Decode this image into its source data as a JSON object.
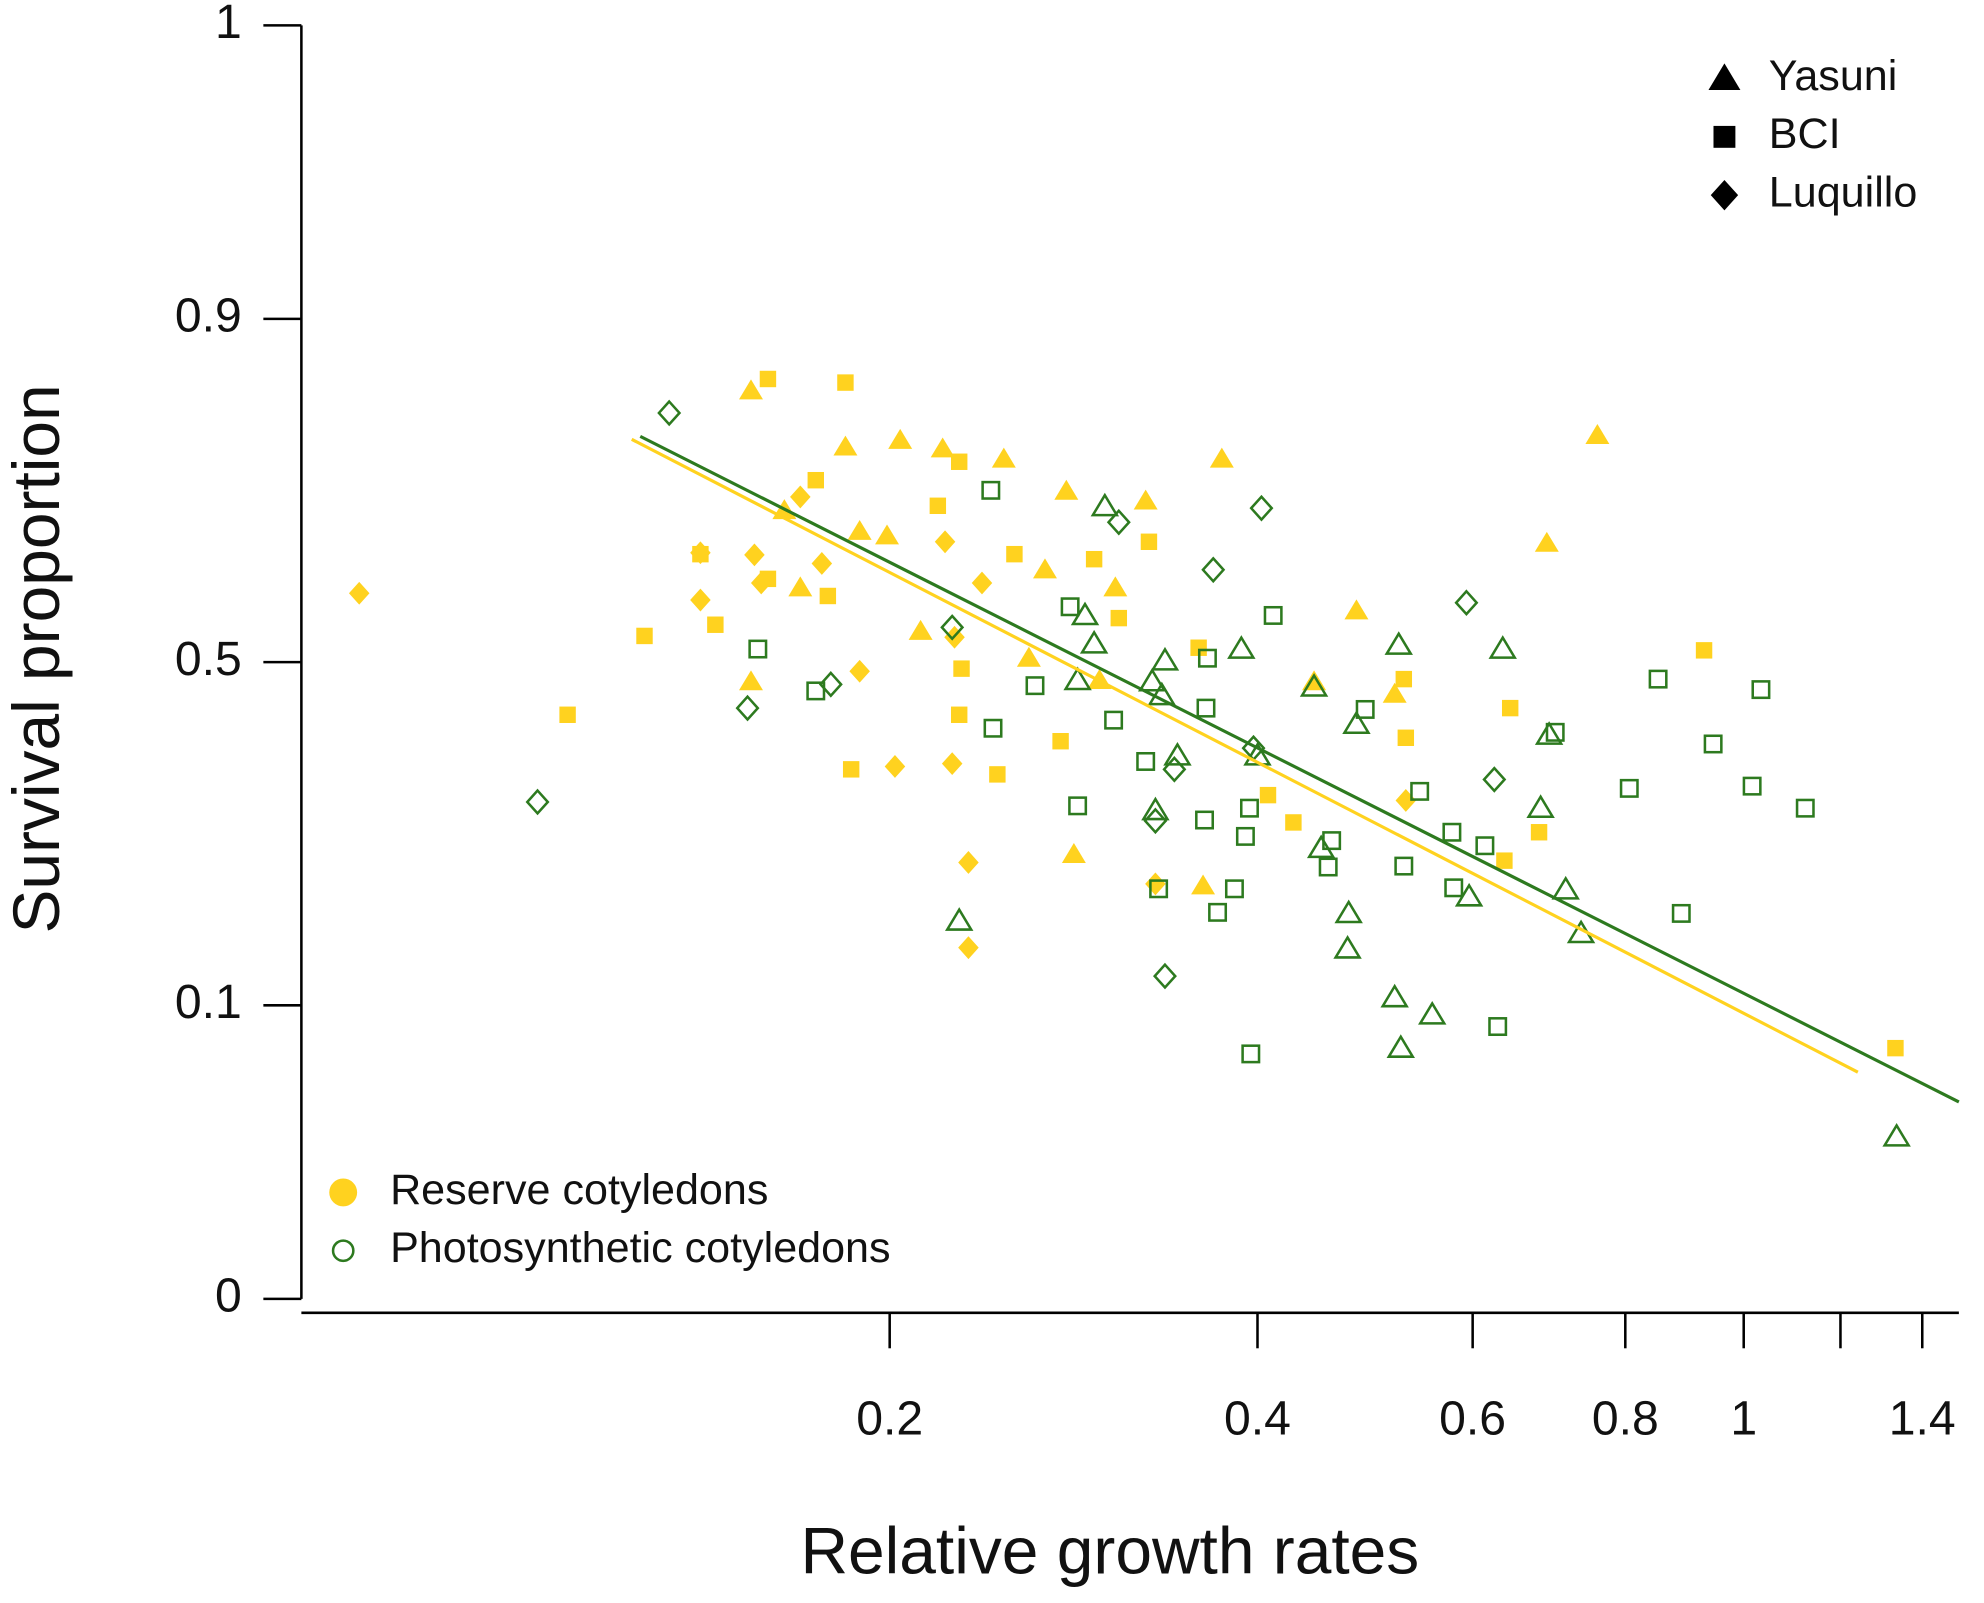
{
  "chart_data": {
    "type": "scatter",
    "x_label": "Relative growth rates",
    "y_label": "Survival proportion",
    "xscale": "log",
    "yscale": "logit",
    "xlim": [
      0.066,
      1.5
    ],
    "ylim": [
      0,
      1
    ],
    "xticks": [
      0.2,
      0.4,
      0.6,
      0.8,
      1,
      {
        "value": 1.2,
        "label": null
      },
      1.4
    ],
    "yticks": [
      0,
      0.1,
      0.5,
      0.9,
      1
    ],
    "legend": "top-right",
    "group_legend": "bottom-left",
    "sites": [
      {
        "name": "Yasuni",
        "marker": "triangle"
      },
      {
        "name": "BCI",
        "marker": "square"
      },
      {
        "name": "Luquillo",
        "marker": "diamond"
      }
    ],
    "series": [
      {
        "name": "Reserve cotyledons",
        "color": "#FFD21F",
        "filled": true,
        "fit": {
          "x": [
            0.123,
            1.24
          ],
          "y": [
            0.8,
            0.063
          ]
        },
        "by_site": [
          {
            "x": [
              0.154,
              0.204,
              0.221,
              0.184,
              0.248,
              0.374,
              0.759,
              0.279,
              0.324,
              0.164,
              0.189,
              0.199,
              0.69,
              0.306,
              0.169,
              0.268,
              0.212,
              0.297,
              0.482,
              0.518,
              0.445,
              0.154,
              0.283,
              0.26,
              0.361
            ],
            "y": [
              0.846,
              0.799,
              0.79,
              0.792,
              0.779,
              0.779,
              0.804,
              0.742,
              0.73,
              0.718,
              0.691,
              0.685,
              0.675,
              0.612,
              0.612,
              0.638,
              0.547,
              0.472,
              0.578,
              0.451,
              0.47,
              0.47,
              0.233,
              0.506,
              0.199
            ]
          },
          {
            "x": [
              0.126,
              0.109,
              0.159,
              0.184,
              0.174,
              0.144,
              0.14,
              0.159,
              0.178,
              0.186,
              0.219,
              0.228,
              0.228,
              0.245,
              0.253,
              0.294,
              0.326,
              0.308,
              0.276,
              0.358,
              0.408,
              0.428,
              0.527,
              0.529,
              0.644,
              0.68,
              0.637,
              0.928,
              1.331,
              0.229
            ],
            "y": [
              0.54,
              0.42,
              0.856,
              0.853,
              0.755,
              0.557,
              0.66,
              0.625,
              0.6,
              0.341,
              0.724,
              0.776,
              0.42,
              0.334,
              0.66,
              0.653,
              0.677,
              0.567,
              0.381,
              0.522,
              0.306,
              0.271,
              0.474,
              0.386,
              0.43,
              0.259,
              0.226,
              0.518,
              0.075,
              0.49
            ]
          },
          {
            "x": [
              0.0736,
              0.14,
              0.14,
              0.155,
              0.157,
              0.169,
              0.176,
              0.189,
              0.202,
              0.222,
              0.226,
              0.238,
              0.232,
              0.232,
              0.529,
              0.33,
              0.225
            ],
            "y": [
              0.604,
              0.662,
              0.594,
              0.659,
              0.619,
              0.735,
              0.647,
              0.486,
              0.345,
              0.677,
              0.538,
              0.619,
              0.224,
              0.142,
              0.299,
              0.201,
              0.349
            ]
          }
        ]
      },
      {
        "name": "Photosynthetic cotyledons",
        "color": "#2D7A1F",
        "filled": false,
        "fit": {
          "x": [
            0.125,
            1.5
          ],
          "y": [
            0.803,
            0.05
          ]
        },
        "by_site": [
          {
            "x": [
              0.3,
              0.289,
              0.294,
              0.285,
              0.336,
              0.334,
              0.328,
              0.388,
              0.344,
              0.4,
              0.445,
              0.482,
              0.522,
              0.635,
              0.693,
              0.682,
              0.715,
              0.736,
              0.596,
              0.451,
              0.475,
              0.474,
              0.518,
              0.556,
              0.524,
              1.334,
              0.228,
              0.33
            ],
            "y": [
              0.723,
              0.571,
              0.528,
              0.472,
              0.502,
              0.449,
              0.47,
              0.52,
              0.36,
              0.36,
              0.462,
              0.406,
              0.526,
              0.52,
              0.39,
              0.289,
              0.195,
              0.154,
              0.188,
              0.24,
              0.172,
              0.141,
              0.105,
              0.094,
              0.075,
              0.037,
              0.165,
              0.286
            ]
          },
          {
            "x": [
              0.156,
              0.174,
              0.242,
              0.263,
              0.281,
              0.305,
              0.285,
              0.324,
              0.332,
              0.362,
              0.364,
              0.363,
              0.371,
              0.383,
              0.394,
              0.391,
              0.412,
              0.46,
              0.457,
              0.49,
              0.543,
              0.527,
              0.577,
              0.614,
              0.579,
              0.629,
              0.701,
              0.806,
              0.851,
              0.889,
              0.944,
              1.016,
              1.033,
              1.123,
              0.395,
              0.243
            ],
            "y": [
              0.52,
              0.456,
              0.743,
              0.464,
              0.584,
              0.412,
              0.292,
              0.352,
              0.196,
              0.274,
              0.506,
              0.43,
              0.173,
              0.196,
              0.289,
              0.254,
              0.571,
              0.249,
              0.219,
              0.428,
              0.311,
              0.22,
              0.259,
              0.243,
              0.197,
              0.087,
              0.394,
              0.315,
              0.474,
              0.172,
              0.377,
              0.318,
              0.458,
              0.289,
              0.072,
              0.4
            ]
          },
          {
            "x": [
              0.132,
              0.103,
              0.153,
              0.179,
              0.225,
              0.308,
              0.403,
              0.368,
              0.342,
              0.33,
              0.397,
              0.593,
              0.625,
              0.336
            ],
            "y": [
              0.826,
              0.297,
              0.43,
              0.466,
              0.553,
              0.703,
              0.721,
              0.638,
              0.341,
              0.273,
              0.371,
              0.59,
              0.327,
              0.12
            ]
          }
        ]
      }
    ]
  }
}
